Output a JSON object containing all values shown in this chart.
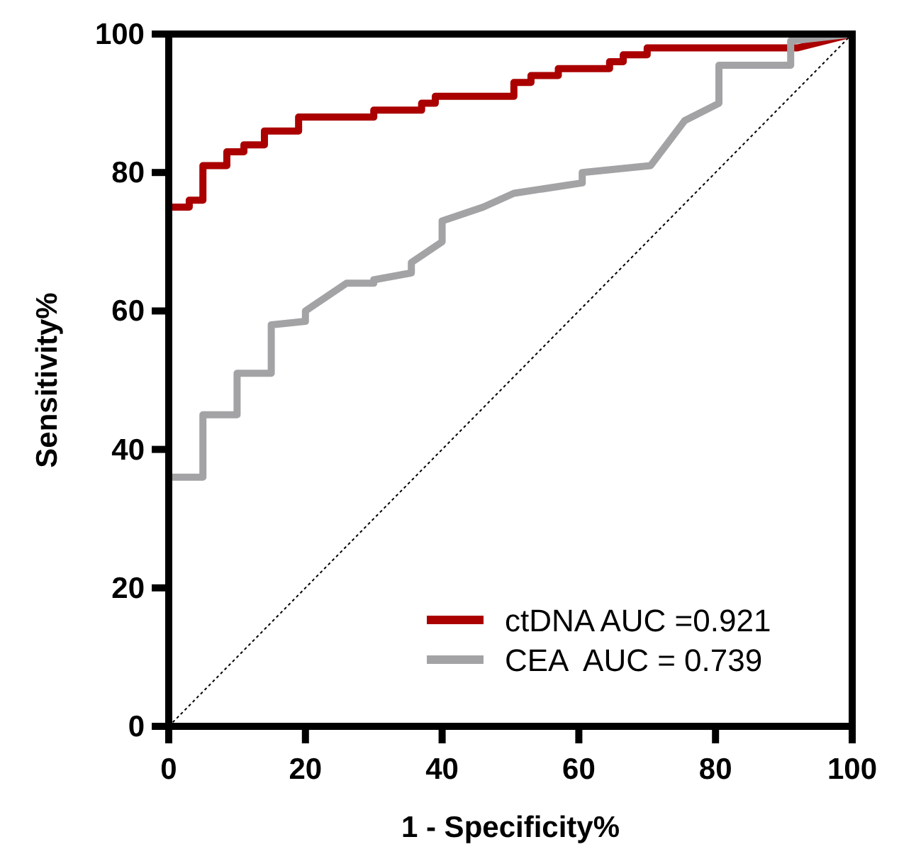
{
  "chart_data": {
    "type": "line",
    "xlabel": "1 - Specificity%",
    "ylabel": "Sensitivity%",
    "xlim": [
      0,
      100
    ],
    "ylim": [
      0,
      100
    ],
    "xticks": [
      0,
      20,
      40,
      60,
      80,
      100
    ],
    "yticks": [
      0,
      20,
      40,
      60,
      80,
      100
    ],
    "grid": false,
    "legend": "bottom right",
    "series": [
      {
        "name": "ctDNA AUC =0.921",
        "color": "#aa0000",
        "x": [
          0,
          0,
          3,
          3,
          5,
          5,
          8.5,
          8.5,
          11,
          11,
          14,
          14,
          19,
          19,
          30,
          30,
          37,
          37,
          39,
          39,
          50.5,
          50.5,
          53,
          53,
          57,
          57,
          64.5,
          64.5,
          66.5,
          66.5,
          70,
          70,
          92,
          100
        ],
        "values": [
          0,
          75,
          75,
          76,
          76,
          81,
          81,
          83,
          83,
          84,
          84,
          86,
          86,
          88,
          88,
          89,
          89,
          90,
          90,
          91,
          91,
          93,
          93,
          94,
          94,
          95,
          95,
          96,
          96,
          97,
          97,
          98,
          98,
          100
        ]
      },
      {
        "name": "CEA  AUC = 0.739",
        "color": "#a3a3a6",
        "x": [
          0,
          0,
          5,
          5,
          10,
          10,
          15,
          15,
          20,
          20,
          26,
          30,
          30,
          35.5,
          35.5,
          40,
          40,
          46,
          50.5,
          60.5,
          60.5,
          70.5,
          75.5,
          80.5,
          80.5,
          91,
          91,
          100
        ],
        "values": [
          0,
          36,
          36,
          45,
          45,
          51,
          51,
          58,
          58.5,
          60,
          64,
          64,
          64.5,
          65.5,
          67,
          70,
          73,
          75,
          77,
          78.5,
          80,
          81,
          87.5,
          90,
          95.5,
          95.5,
          99,
          100
        ]
      },
      {
        "color": "#000000",
        "line_style": "dotted",
        "x": [
          0,
          100
        ],
        "values": [
          0,
          100
        ]
      }
    ]
  }
}
